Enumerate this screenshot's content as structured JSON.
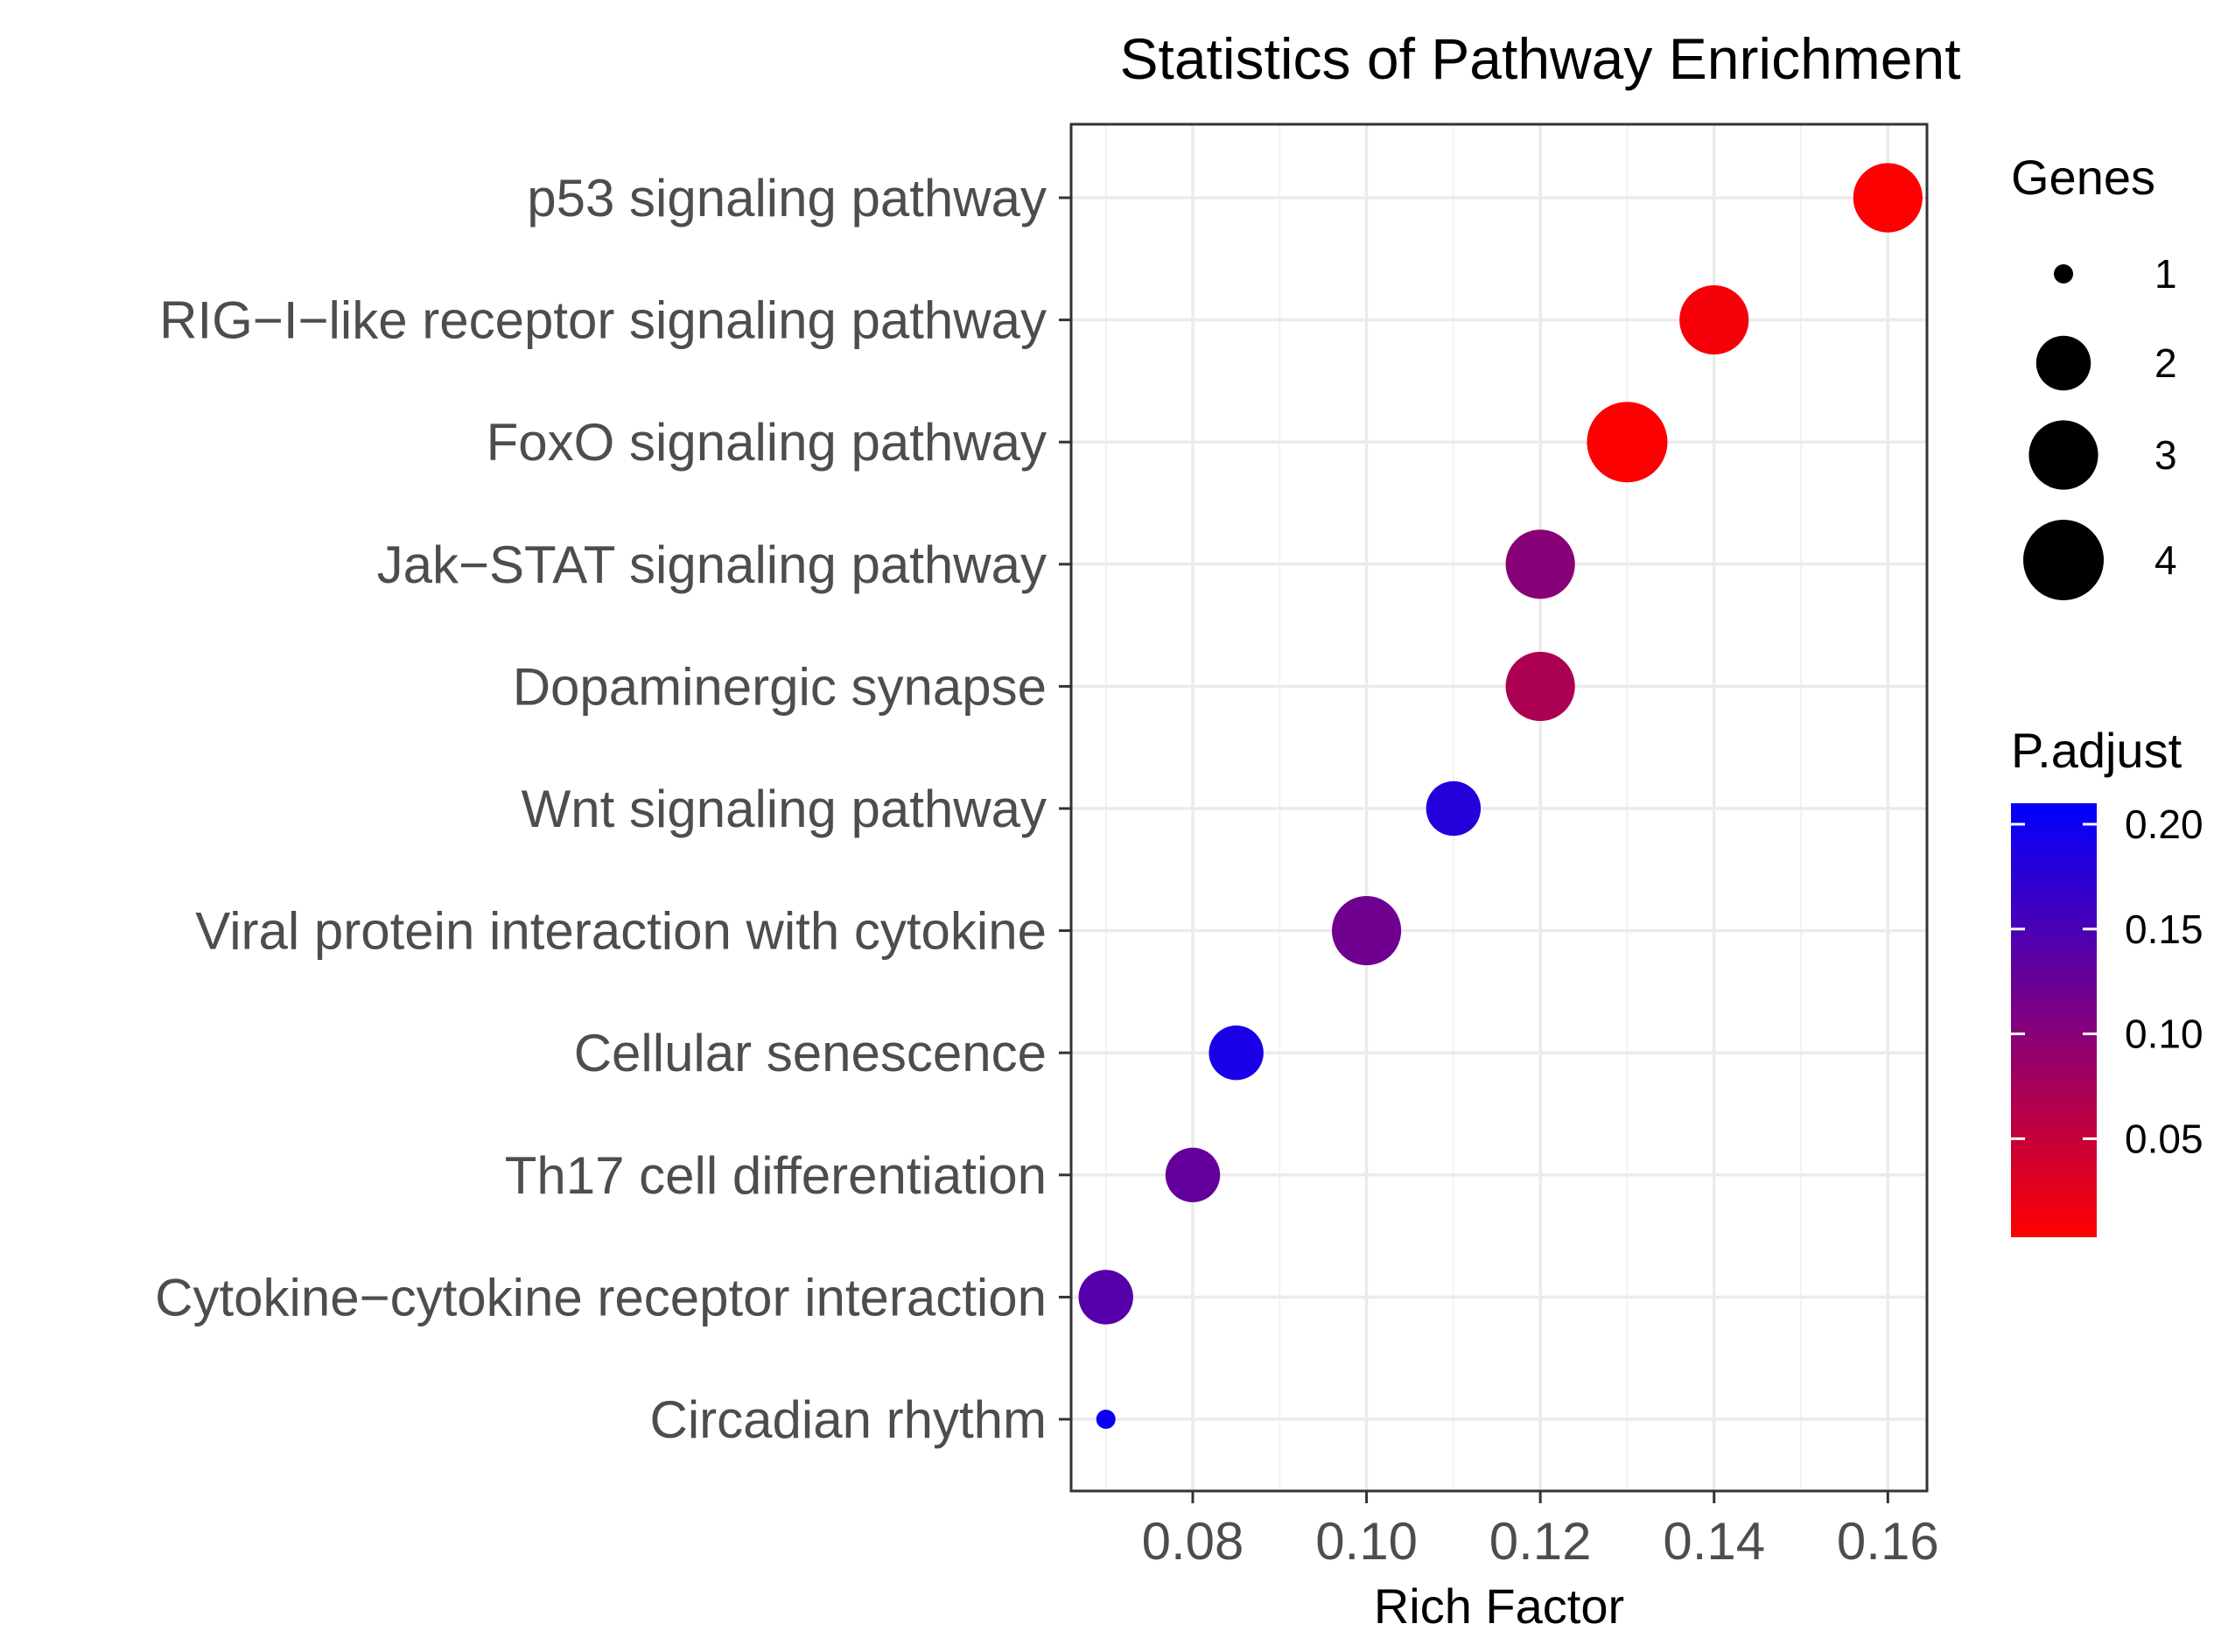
{
  "chart_data": {
    "type": "scatter",
    "title": "Statistics of Pathway Enrichment",
    "xlabel": "Rich Factor",
    "ylabel": "",
    "xlim": [
      0.066,
      0.1645
    ],
    "grid": true,
    "x_ticks": [
      0.08,
      0.1,
      0.12,
      0.14,
      0.16
    ],
    "x_tick_labels": [
      "0.08",
      "0.10",
      "0.12",
      "0.14",
      "0.16"
    ],
    "categories": [
      "p53 signaling pathway",
      "RIG−I−like receptor signaling pathway",
      "FoxO signaling pathway",
      "Jak−STAT signaling pathway",
      "Dopaminergic synapse",
      "Wnt signaling pathway",
      "Viral protein interaction with cytokine",
      "Cellular senescence",
      "Th17 cell differentiation",
      "Cytokine−cytokine receptor interaction",
      "Circadian rhythm"
    ],
    "points": [
      {
        "pathway": "p53 signaling pathway",
        "rich_factor": 0.16,
        "genes": 3,
        "p_adjust": 0.005
      },
      {
        "pathway": "RIG−I−like receptor signaling pathway",
        "rich_factor": 0.14,
        "genes": 3,
        "p_adjust": 0.01
      },
      {
        "pathway": "FoxO signaling pathway",
        "rich_factor": 0.13,
        "genes": 4,
        "p_adjust": 0.005
      },
      {
        "pathway": "Jak−STAT signaling pathway",
        "rich_factor": 0.12,
        "genes": 3,
        "p_adjust": 0.1
      },
      {
        "pathway": "Dopaminergic synapse",
        "rich_factor": 0.12,
        "genes": 3,
        "p_adjust": 0.07
      },
      {
        "pathway": "Wnt signaling pathway",
        "rich_factor": 0.11,
        "genes": 2,
        "p_adjust": 0.18
      },
      {
        "pathway": "Viral protein interaction with cytokine",
        "rich_factor": 0.1,
        "genes": 3,
        "p_adjust": 0.12
      },
      {
        "pathway": "Cellular senescence",
        "rich_factor": 0.085,
        "genes": 2,
        "p_adjust": 0.19
      },
      {
        "pathway": "Th17 cell differentiation",
        "rich_factor": 0.08,
        "genes": 2,
        "p_adjust": 0.13
      },
      {
        "pathway": "Cytokine−cytokine receptor interaction",
        "rich_factor": 0.07,
        "genes": 2,
        "p_adjust": 0.14
      },
      {
        "pathway": "Circadian rhythm",
        "rich_factor": 0.07,
        "genes": 1,
        "p_adjust": 0.2
      }
    ],
    "size_legend": {
      "title": "Genes",
      "values": [
        1,
        2,
        3,
        4
      ],
      "labels": [
        "1",
        "2",
        "3",
        "4"
      ]
    },
    "color_legend": {
      "title": "P.adjust",
      "range": [
        0.003,
        0.21
      ],
      "ticks": [
        0.2,
        0.15,
        0.1,
        0.05
      ],
      "tick_labels": [
        "0.20",
        "0.15",
        "0.10",
        "0.05"
      ],
      "low_color": "#ff0000",
      "high_color": "#0000ff"
    }
  }
}
